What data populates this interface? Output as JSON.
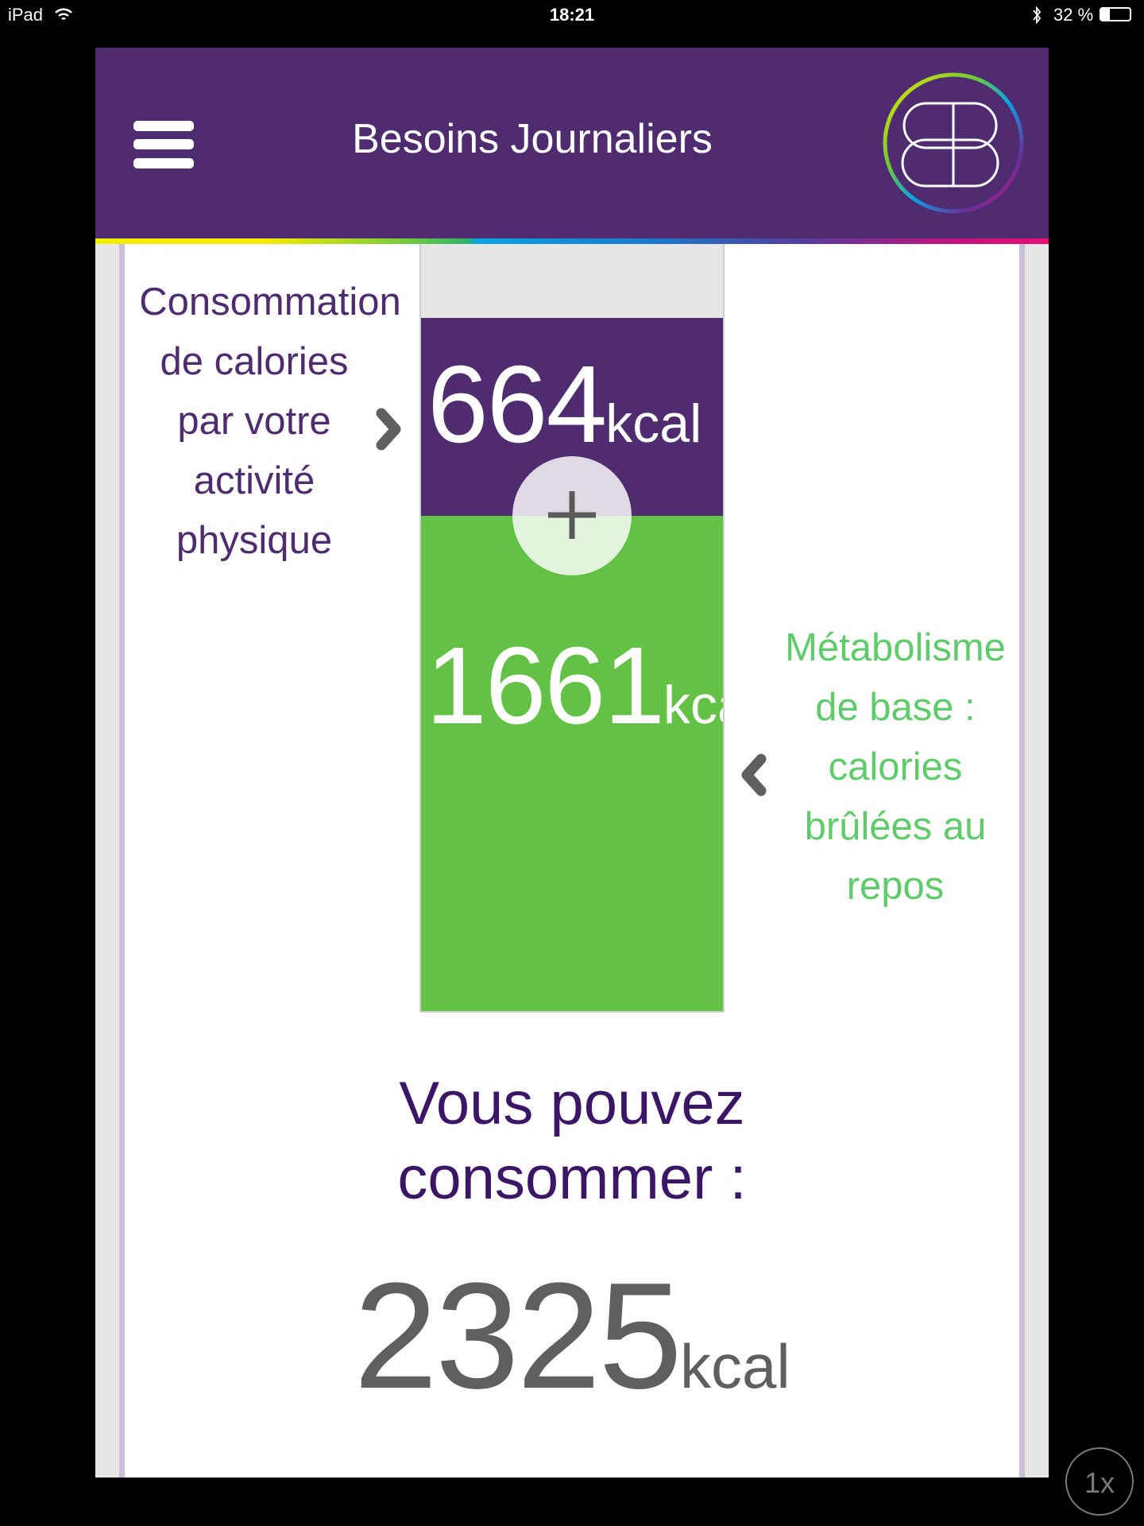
{
  "status_bar": {
    "device": "iPad",
    "time": "18:21",
    "battery": "32 %",
    "icons": [
      "wifi-icon",
      "bluetooth-icon",
      "battery-icon"
    ]
  },
  "header": {
    "title": "Besoins Journaliers",
    "menu_icon": "hamburger-menu-icon",
    "logo": "BB"
  },
  "activity": {
    "label_lines": [
      "Consommation",
      "de calories",
      "par votre",
      "activité",
      "physique"
    ],
    "value": "664",
    "unit": "kcal"
  },
  "basal": {
    "label_lines": [
      "Métabolisme",
      "de base :",
      "calories",
      "brûlées au",
      "repos"
    ],
    "value": "1661",
    "unit": "kcal"
  },
  "summary": {
    "line1": "Vous pouvez",
    "line2": "consommer :",
    "value": "2325",
    "unit": "kcal"
  },
  "zoom_button": "1x",
  "colors": {
    "brand_purple": "#4e2c6f",
    "green": "#63c145",
    "label_green": "#5fcb6b",
    "dark_purple": "#3b1566"
  }
}
